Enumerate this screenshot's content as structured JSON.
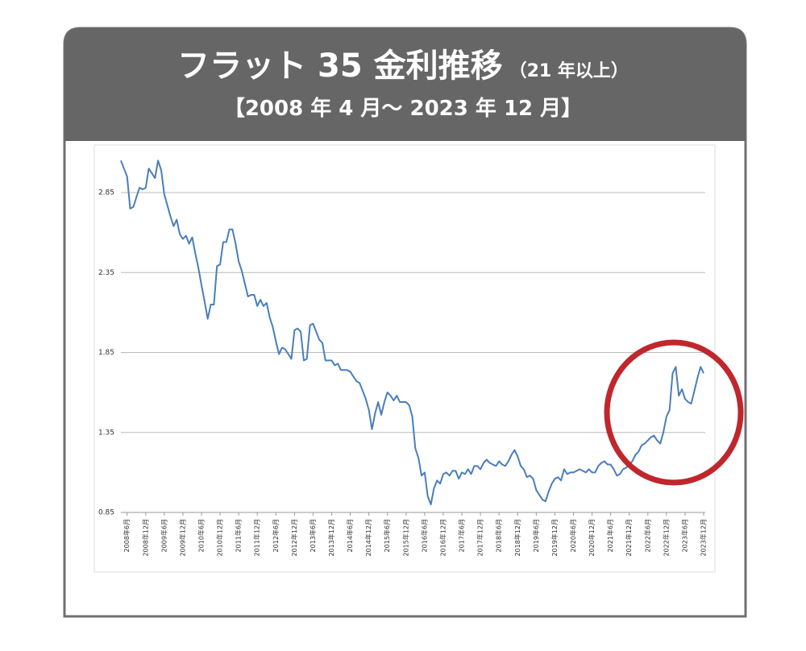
{
  "chart_data": {
    "type": "line",
    "title": "フラット 35 金利推移",
    "title_suffix": "（21 年以上）",
    "subtitle": "【2008 年 4 月～ 2023 年 12 月】",
    "categories": [
      null,
      null,
      "2008年6月",
      null,
      null,
      null,
      null,
      null,
      "2008年12月",
      null,
      null,
      null,
      null,
      null,
      "2009年6月",
      null,
      null,
      null,
      null,
      null,
      "2009年12月",
      null,
      null,
      null,
      null,
      null,
      "2010年6月",
      null,
      null,
      null,
      null,
      null,
      "2010年12月",
      null,
      null,
      null,
      null,
      null,
      "2011年6月",
      null,
      null,
      null,
      null,
      null,
      "2011年12月",
      null,
      null,
      null,
      null,
      null,
      "2012年6月",
      null,
      null,
      null,
      null,
      null,
      "2012年12月",
      null,
      null,
      null,
      null,
      null,
      "2013年6月",
      null,
      null,
      null,
      null,
      null,
      "2013年12月",
      null,
      null,
      null,
      null,
      null,
      "2014年6月",
      null,
      null,
      null,
      null,
      null,
      "2014年12月",
      null,
      null,
      null,
      null,
      null,
      "2015年6月",
      null,
      null,
      null,
      null,
      null,
      "2015年12月",
      null,
      null,
      null,
      null,
      null,
      "2016年6月",
      null,
      null,
      null,
      null,
      null,
      "2016年12月",
      null,
      null,
      null,
      null,
      null,
      "2017年6月",
      null,
      null,
      null,
      null,
      null,
      "2017年12月",
      null,
      null,
      null,
      null,
      null,
      "2018年6月",
      null,
      null,
      null,
      null,
      null,
      "2018年12月",
      null,
      null,
      null,
      null,
      null,
      "2019年6月",
      null,
      null,
      null,
      null,
      null,
      "2019年12月",
      null,
      null,
      null,
      null,
      null,
      "2020年6月",
      null,
      null,
      null,
      null,
      null,
      "2020年12月",
      null,
      null,
      null,
      null,
      null,
      "2021年6月",
      null,
      null,
      null,
      null,
      null,
      "2021年12月",
      null,
      null,
      null,
      null,
      null,
      "2022年6月",
      null,
      null,
      null,
      null,
      null,
      "2022年12月",
      null,
      null,
      null,
      null,
      null,
      "2023年6月",
      null,
      null,
      null,
      null,
      null,
      "2023年12月"
    ],
    "values": [
      3.05,
      3.0,
      2.95,
      2.75,
      2.76,
      2.82,
      2.88,
      2.87,
      2.88,
      3.0,
      2.97,
      2.94,
      3.05,
      2.99,
      2.84,
      2.77,
      2.7,
      2.64,
      2.68,
      2.59,
      2.56,
      2.58,
      2.53,
      2.57,
      2.47,
      2.38,
      2.27,
      2.17,
      2.06,
      2.15,
      2.15,
      2.39,
      2.4,
      2.54,
      2.54,
      2.62,
      2.62,
      2.53,
      2.42,
      2.36,
      2.28,
      2.2,
      2.21,
      2.21,
      2.14,
      2.18,
      2.14,
      2.16,
      2.07,
      2.01,
      1.92,
      1.84,
      1.88,
      1.87,
      1.84,
      1.81,
      1.99,
      2.0,
      1.98,
      1.8,
      1.81,
      2.02,
      2.03,
      1.98,
      1.93,
      1.91,
      1.8,
      1.8,
      1.8,
      1.77,
      1.78,
      1.74,
      1.74,
      1.74,
      1.73,
      1.7,
      1.67,
      1.66,
      1.61,
      1.56,
      1.49,
      1.37,
      1.47,
      1.54,
      1.46,
      1.54,
      1.6,
      1.58,
      1.55,
      1.58,
      1.54,
      1.54,
      1.54,
      1.52,
      1.45,
      1.25,
      1.19,
      1.08,
      1.1,
      0.95,
      0.9,
      1.0,
      1.05,
      1.03,
      1.09,
      1.1,
      1.08,
      1.11,
      1.11,
      1.06,
      1.1,
      1.09,
      1.12,
      1.09,
      1.14,
      1.14,
      1.12,
      1.16,
      1.18,
      1.16,
      1.15,
      1.14,
      1.17,
      1.15,
      1.14,
      1.17,
      1.21,
      1.24,
      1.2,
      1.14,
      1.12,
      1.07,
      1.08,
      1.06,
      0.99,
      0.96,
      0.93,
      0.92,
      0.98,
      1.03,
      1.06,
      1.07,
      1.05,
      1.12,
      1.09,
      1.1,
      1.1,
      1.11,
      1.12,
      1.11,
      1.1,
      1.12,
      1.1,
      1.1,
      1.14,
      1.16,
      1.17,
      1.15,
      1.15,
      1.12,
      1.08,
      1.09,
      1.12,
      1.13,
      1.15,
      1.17,
      1.21,
      1.23,
      1.27,
      1.28,
      1.3,
      1.32,
      1.33,
      1.3,
      1.28,
      1.35,
      1.45,
      1.49,
      1.72,
      1.76,
      1.58,
      1.62,
      1.56,
      1.54,
      1.53,
      1.61,
      1.69,
      1.76,
      1.72
    ],
    "color": "#4a7ebb",
    "ylim": [
      0.85,
      3.1
    ],
    "yticks": [
      0.85,
      1.35,
      1.85,
      2.35,
      2.85
    ],
    "grid": true
  }
}
